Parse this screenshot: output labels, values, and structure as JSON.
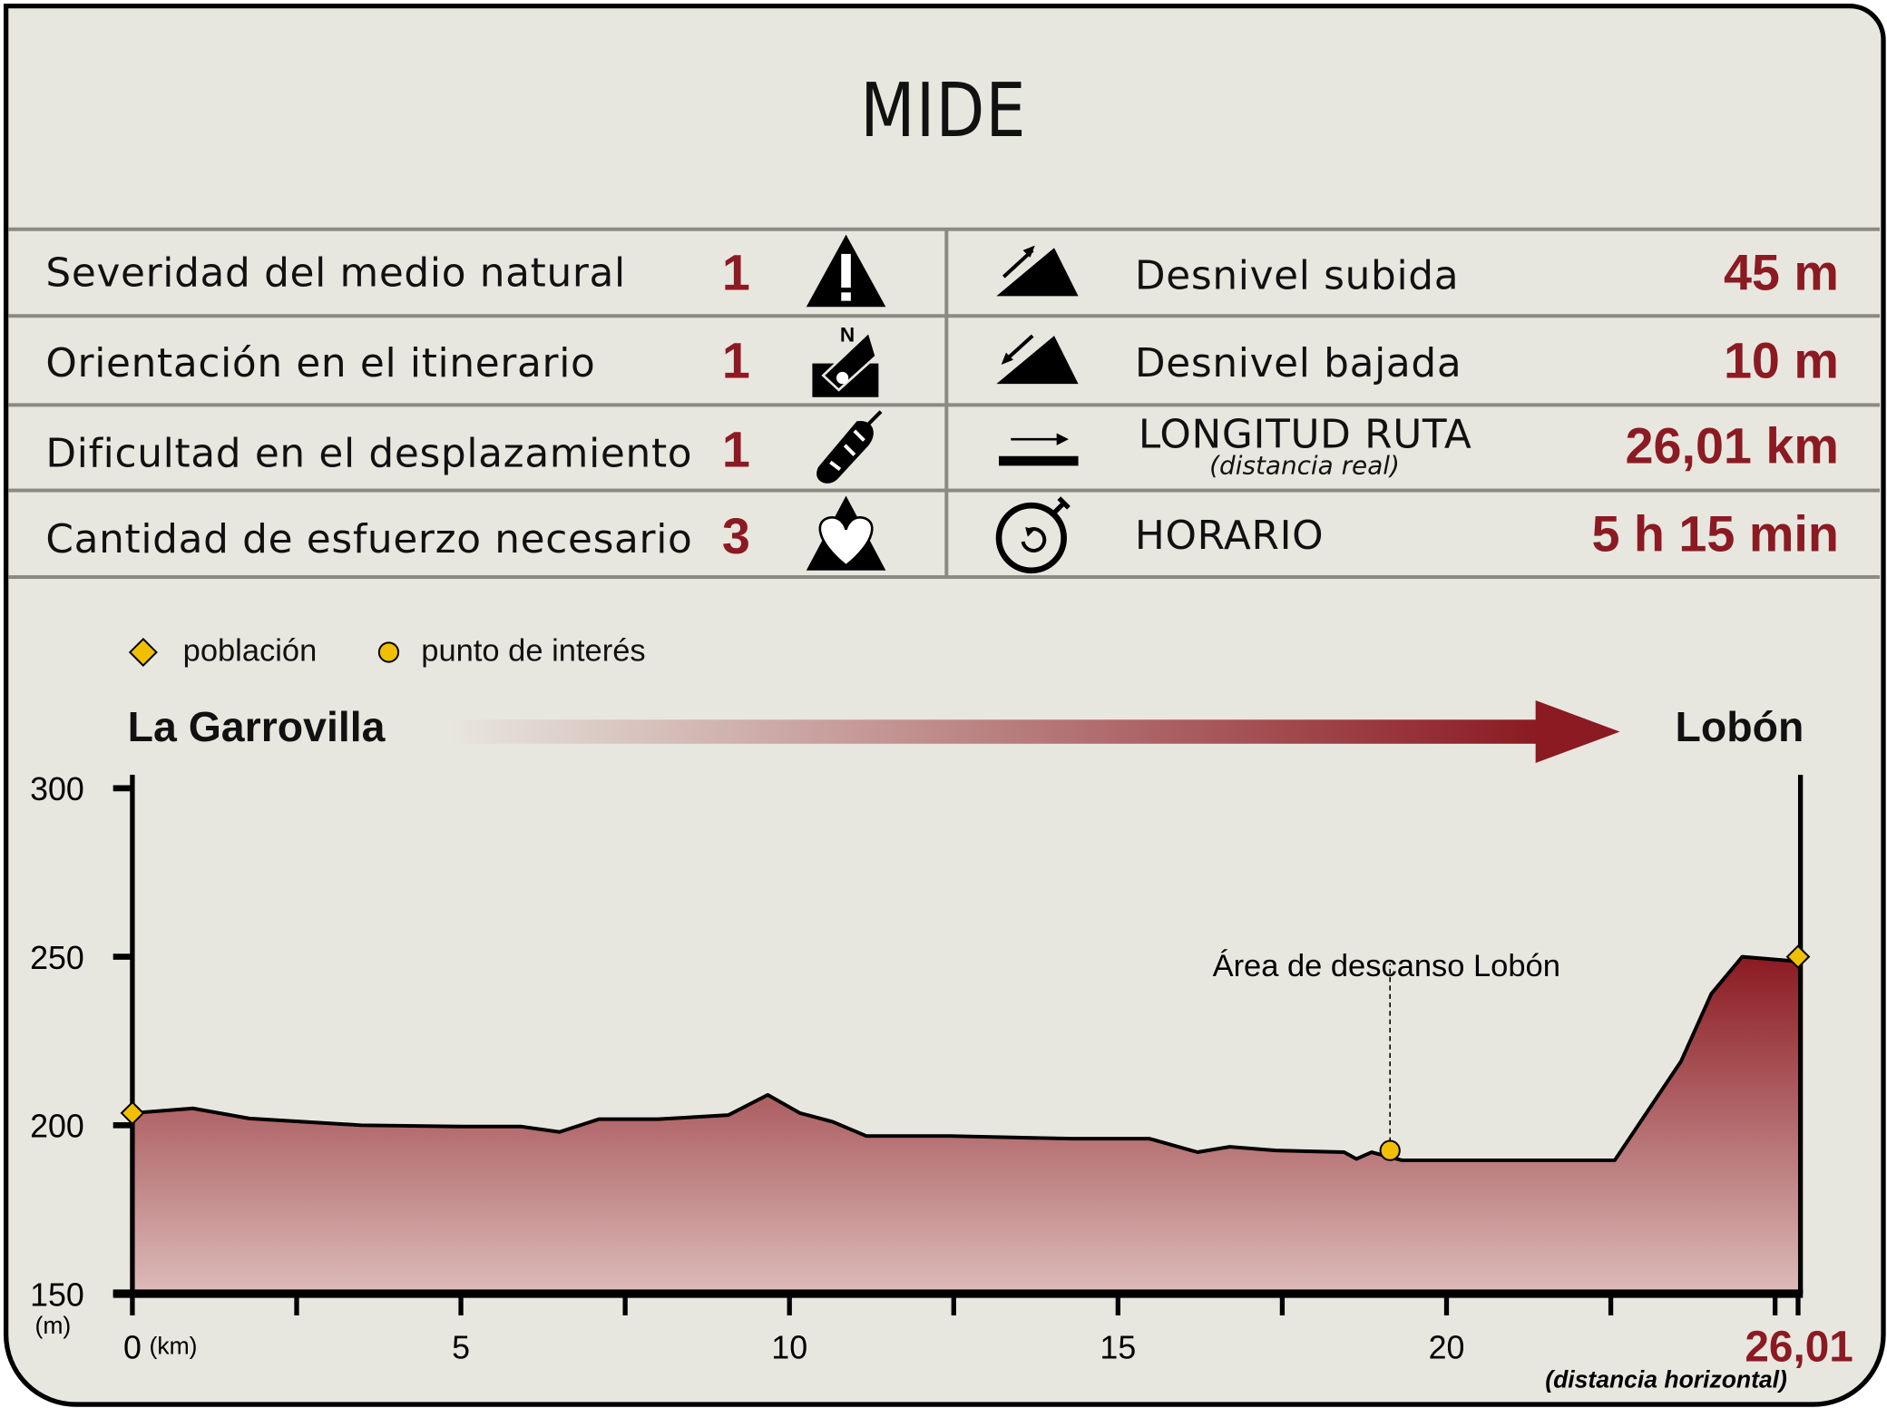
{
  "title": "MIDE",
  "mide": [
    {
      "label": "Severidad del medio natural",
      "value": "1",
      "icon": "warning-triangle-icon"
    },
    {
      "label": "Orientación en el itinerario",
      "value": "1",
      "icon": "compass-north-icon"
    },
    {
      "label": "Dificultad en el desplazamiento",
      "value": "1",
      "icon": "footprint-icon"
    },
    {
      "label": "Cantidad de esfuerzo necesario",
      "value": "3",
      "icon": "heart-mountain-icon"
    }
  ],
  "stats": [
    {
      "label": "Desnivel subida",
      "value": "45 m",
      "icon": "ascent-icon"
    },
    {
      "label": "Desnivel bajada",
      "value": "10 m",
      "icon": "descent-icon"
    },
    {
      "label": "LONGITUD RUTA",
      "sublabel": "(distancia real)",
      "value": "26,01 km",
      "icon": "distance-arrow-icon"
    },
    {
      "label": "HORARIO",
      "value": "5 h 15 min",
      "icon": "stopwatch-icon"
    }
  ],
  "legend": {
    "town": "población",
    "poi": "punto de interés"
  },
  "route": {
    "start": "La Garrovilla",
    "end": "Lobón"
  },
  "colors": {
    "accent": "#8b1a22",
    "background": "#e8e7df",
    "marker": "#f0c000"
  },
  "chart_data": {
    "type": "area",
    "xlabel": "(km)",
    "ylabel": "(m)",
    "x_ticks": [
      "0",
      "5",
      "10",
      "15",
      "20"
    ],
    "y_ticks": [
      "150",
      "200",
      "250",
      "300"
    ],
    "ylim": [
      150,
      300
    ],
    "x_end_label": "26,01",
    "x_end_note": "(distancia horizontal)",
    "grid": false,
    "profile": [
      [
        0,
        203.6
      ],
      [
        0.92,
        205
      ],
      [
        1.78,
        202
      ],
      [
        3.48,
        200
      ],
      [
        5,
        199.6
      ],
      [
        5.92,
        199.6
      ],
      [
        6.5,
        198
      ],
      [
        7.1,
        201.8
      ],
      [
        8.0,
        201.8
      ],
      [
        9.07,
        203
      ],
      [
        9.67,
        209
      ],
      [
        10.16,
        203.6
      ],
      [
        10.66,
        201
      ],
      [
        11.17,
        196.8
      ],
      [
        12.45,
        196.8
      ],
      [
        14.29,
        196
      ],
      [
        15.48,
        196
      ],
      [
        16.21,
        192
      ],
      [
        16.7,
        193.6
      ],
      [
        17.4,
        192.5
      ],
      [
        18.44,
        192
      ],
      [
        18.63,
        190
      ],
      [
        18.86,
        192
      ],
      [
        19.32,
        189.6
      ],
      [
        22.56,
        189.6
      ],
      [
        23.57,
        219
      ],
      [
        24.03,
        239
      ],
      [
        24.5,
        250
      ],
      [
        25.35,
        248.6
      ]
    ],
    "towns": [
      {
        "name": "La Garrovilla",
        "x": 0,
        "y": 203.6
      },
      {
        "name": "Lobón",
        "x": 25.35,
        "y": 250
      }
    ],
    "points_of_interest": [
      {
        "name": "Área de descanso Lobón",
        "x": 19.14,
        "y": 192.5
      }
    ]
  }
}
